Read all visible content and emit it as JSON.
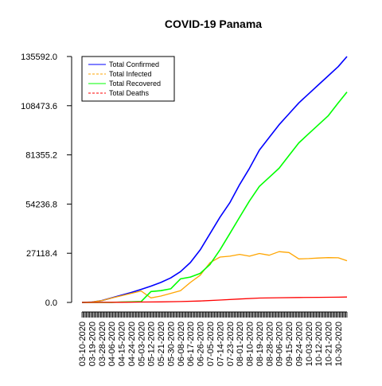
{
  "chart_data": {
    "type": "line",
    "title": "COVID-19 Panama",
    "xlabel": "",
    "ylabel": "",
    "y_ticks": [
      0.0,
      27118.4,
      54236.8,
      81355.2,
      108473.6,
      135592.0
    ],
    "y_tick_labels": [
      "0.0",
      "27118.4",
      "54236.8",
      "81355.2",
      "108473.6",
      "135592.0"
    ],
    "ylim": [
      0,
      135592
    ],
    "xlim": [
      "03-10-2020",
      "11-07-2020"
    ],
    "x_tick_labels": [
      "03-10-2020",
      "03-19-2020",
      "03-28-2020",
      "04-06-2020",
      "04-15-2020",
      "04-24-2020",
      "05-03-2020",
      "05-12-2020",
      "05-21-2020",
      "05-30-2020",
      "06-08-2020",
      "06-17-2020",
      "06-26-2020",
      "07-05-2020",
      "07-14-2020",
      "07-23-2020",
      "08-01-2020",
      "08-10-2020",
      "08-19-2020",
      "08-28-2020",
      "09-06-2020",
      "09-15-2020",
      "09-24-2020",
      "10-03-2020",
      "10-12-2020",
      "10-21-2020",
      "10-30-2020"
    ],
    "grid": false,
    "legend_position": "top-left",
    "series": [
      {
        "name": "Total Confirmed",
        "color": "#0000ff",
        "dash": "solid",
        "points": [
          [
            "03-10-2020",
            0
          ],
          [
            "03-19-2020",
            200
          ],
          [
            "03-28-2020",
            1000
          ],
          [
            "04-06-2020",
            2500
          ],
          [
            "04-15-2020",
            4000
          ],
          [
            "04-24-2020",
            5500
          ],
          [
            "05-03-2020",
            7200
          ],
          [
            "05-12-2020",
            9000
          ],
          [
            "05-21-2020",
            11000
          ],
          [
            "05-30-2020",
            13500
          ],
          [
            "06-08-2020",
            17000
          ],
          [
            "06-17-2020",
            22000
          ],
          [
            "06-26-2020",
            29000
          ],
          [
            "07-05-2020",
            38000
          ],
          [
            "07-14-2020",
            47000
          ],
          [
            "07-23-2020",
            55000
          ],
          [
            "08-01-2020",
            65000
          ],
          [
            "08-10-2020",
            74000
          ],
          [
            "08-19-2020",
            84000
          ],
          [
            "08-28-2020",
            91000
          ],
          [
            "09-06-2020",
            98000
          ],
          [
            "09-15-2020",
            104000
          ],
          [
            "09-24-2020",
            110000
          ],
          [
            "10-03-2020",
            115000
          ],
          [
            "10-12-2020",
            120000
          ],
          [
            "10-21-2020",
            125000
          ],
          [
            "10-30-2020",
            130000
          ],
          [
            "11-07-2020",
            135592
          ]
        ]
      },
      {
        "name": "Total Infected",
        "color": "#ffa500",
        "dash": "dashed",
        "points": [
          [
            "03-10-2020",
            0
          ],
          [
            "03-19-2020",
            200
          ],
          [
            "03-28-2020",
            1000
          ],
          [
            "04-06-2020",
            2400
          ],
          [
            "04-15-2020",
            3700
          ],
          [
            "04-24-2020",
            5000
          ],
          [
            "05-03-2020",
            6300
          ],
          [
            "05-12-2020",
            2500
          ],
          [
            "05-21-2020",
            3500
          ],
          [
            "05-30-2020",
            5000
          ],
          [
            "06-08-2020",
            6500
          ],
          [
            "06-17-2020",
            11000
          ],
          [
            "06-26-2020",
            15000
          ],
          [
            "07-05-2020",
            22000
          ],
          [
            "07-14-2020",
            25000
          ],
          [
            "07-23-2020",
            25500
          ],
          [
            "08-01-2020",
            26500
          ],
          [
            "08-10-2020",
            25500
          ],
          [
            "08-19-2020",
            27000
          ],
          [
            "08-28-2020",
            26000
          ],
          [
            "09-06-2020",
            28000
          ],
          [
            "09-15-2020",
            27500
          ],
          [
            "09-24-2020",
            24000
          ],
          [
            "10-03-2020",
            24200
          ],
          [
            "10-12-2020",
            24500
          ],
          [
            "10-21-2020",
            24700
          ],
          [
            "10-30-2020",
            24600
          ],
          [
            "11-07-2020",
            23000
          ]
        ]
      },
      {
        "name": "Total Recovered",
        "color": "#00ff00",
        "dash": "solid",
        "points": [
          [
            "03-10-2020",
            0
          ],
          [
            "03-19-2020",
            0
          ],
          [
            "03-28-2020",
            0
          ],
          [
            "04-06-2020",
            0
          ],
          [
            "04-15-2020",
            200
          ],
          [
            "04-24-2020",
            300
          ],
          [
            "05-03-2020",
            500
          ],
          [
            "05-12-2020",
            6000
          ],
          [
            "05-21-2020",
            6500
          ],
          [
            "05-30-2020",
            7500
          ],
          [
            "06-08-2020",
            13000
          ],
          [
            "06-17-2020",
            14000
          ],
          [
            "06-26-2020",
            16000
          ],
          [
            "07-05-2020",
            21000
          ],
          [
            "07-14-2020",
            29000
          ],
          [
            "07-23-2020",
            38000
          ],
          [
            "08-01-2020",
            47000
          ],
          [
            "08-10-2020",
            56000
          ],
          [
            "08-19-2020",
            64000
          ],
          [
            "08-28-2020",
            69000
          ],
          [
            "09-06-2020",
            74000
          ],
          [
            "09-15-2020",
            81000
          ],
          [
            "09-24-2020",
            88000
          ],
          [
            "10-03-2020",
            93000
          ],
          [
            "10-12-2020",
            98000
          ],
          [
            "10-21-2020",
            103000
          ],
          [
            "10-30-2020",
            110000
          ],
          [
            "11-07-2020",
            116000
          ]
        ]
      },
      {
        "name": "Total Deaths",
        "color": "#ff0000",
        "dash": "dashed",
        "points": [
          [
            "03-10-2020",
            0
          ],
          [
            "03-28-2020",
            30
          ],
          [
            "04-15-2020",
            100
          ],
          [
            "05-03-2020",
            200
          ],
          [
            "05-21-2020",
            300
          ],
          [
            "06-08-2020",
            500
          ],
          [
            "06-26-2020",
            800
          ],
          [
            "07-14-2020",
            1300
          ],
          [
            "08-01-2020",
            1900
          ],
          [
            "08-19-2020",
            2400
          ],
          [
            "09-06-2020",
            2600
          ],
          [
            "09-24-2020",
            2700
          ],
          [
            "10-12-2020",
            2800
          ],
          [
            "10-30-2020",
            2900
          ],
          [
            "11-07-2020",
            3000
          ]
        ]
      }
    ]
  }
}
